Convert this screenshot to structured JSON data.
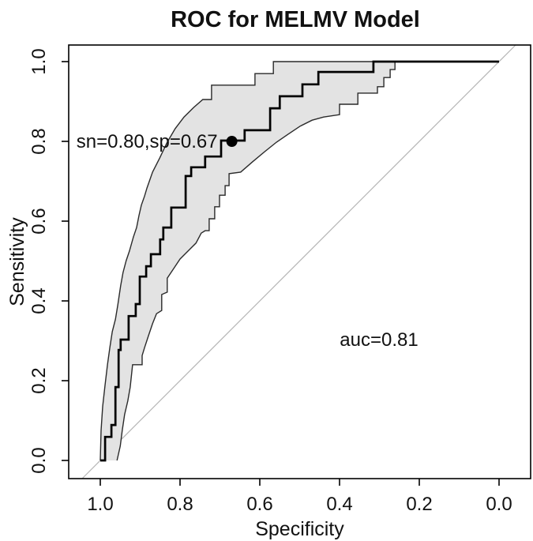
{
  "figure": {
    "title": "ROC for MELMV Model"
  },
  "chart_data": {
    "type": "line",
    "subtype": "roc-step-curve-with-confidence-band",
    "title": "ROC for MELMV Model",
    "xlabel": "Specificity",
    "ylabel": "Sensitivity",
    "grid": false,
    "legend": "none",
    "diagonal_reference_line": true,
    "x_axis": {
      "reversed": true,
      "tick_labels": [
        "1.0",
        "0.8",
        "0.6",
        "0.4",
        "0.2",
        "0.0"
      ],
      "tick_values": [
        1.0,
        0.8,
        0.6,
        0.4,
        0.2,
        0.0
      ],
      "range": [
        1.08,
        -0.08
      ]
    },
    "y_axis": {
      "tick_labels": [
        "0.0",
        "0.2",
        "0.4",
        "0.6",
        "0.8",
        "1.0"
      ],
      "tick_values": [
        0.0,
        0.2,
        0.4,
        0.6,
        0.8,
        1.0
      ],
      "range": [
        -0.05,
        1.04
      ]
    },
    "annotations": {
      "operating_point": {
        "label": "sn=0.80,sp=0.67",
        "sn": 0.8,
        "sp": 0.67
      },
      "auc": {
        "label": "auc=0.81",
        "value": 0.81,
        "at_specificity": 0.3,
        "at_sensitivity": 0.3
      }
    },
    "colors": {
      "band_fill": "#e3e3e3",
      "band_edge": "#2a2a2a",
      "curve": "#000000",
      "diagonal": "#b5b5b5",
      "box": "#000000",
      "text": "#111111",
      "marker": "#000000"
    },
    "series": [
      {
        "name": "roc_curve",
        "type": "step",
        "points": [
          [
            1.0,
            0.0
          ],
          [
            0.988,
            0.0
          ],
          [
            0.988,
            0.059
          ],
          [
            0.972,
            0.059
          ],
          [
            0.972,
            0.089
          ],
          [
            0.962,
            0.089
          ],
          [
            0.962,
            0.184
          ],
          [
            0.954,
            0.184
          ],
          [
            0.954,
            0.277
          ],
          [
            0.949,
            0.277
          ],
          [
            0.949,
            0.303
          ],
          [
            0.929,
            0.303
          ],
          [
            0.929,
            0.362
          ],
          [
            0.911,
            0.362
          ],
          [
            0.911,
            0.392
          ],
          [
            0.901,
            0.392
          ],
          [
            0.901,
            0.461
          ],
          [
            0.885,
            0.461
          ],
          [
            0.885,
            0.487
          ],
          [
            0.873,
            0.487
          ],
          [
            0.873,
            0.517
          ],
          [
            0.85,
            0.517
          ],
          [
            0.85,
            0.554
          ],
          [
            0.842,
            0.554
          ],
          [
            0.842,
            0.584
          ],
          [
            0.822,
            0.584
          ],
          [
            0.822,
            0.634
          ],
          [
            0.786,
            0.634
          ],
          [
            0.786,
            0.713
          ],
          [
            0.772,
            0.713
          ],
          [
            0.772,
            0.735
          ],
          [
            0.737,
            0.735
          ],
          [
            0.737,
            0.762
          ],
          [
            0.697,
            0.762
          ],
          [
            0.697,
            0.802
          ],
          [
            0.638,
            0.802
          ],
          [
            0.638,
            0.828
          ],
          [
            0.574,
            0.828
          ],
          [
            0.574,
            0.883
          ],
          [
            0.55,
            0.883
          ],
          [
            0.55,
            0.913
          ],
          [
            0.493,
            0.913
          ],
          [
            0.493,
            0.943
          ],
          [
            0.453,
            0.943
          ],
          [
            0.453,
            0.974
          ],
          [
            0.315,
            0.974
          ],
          [
            0.315,
            1.0
          ],
          [
            0.0,
            1.0
          ]
        ]
      },
      {
        "name": "ci_band_upper",
        "type": "step",
        "points": [
          [
            1.0,
            0.0
          ],
          [
            0.998,
            0.075
          ],
          [
            0.994,
            0.135
          ],
          [
            0.988,
            0.19
          ],
          [
            0.982,
            0.24
          ],
          [
            0.976,
            0.283
          ],
          [
            0.97,
            0.323
          ],
          [
            0.962,
            0.354
          ],
          [
            0.956,
            0.39
          ],
          [
            0.949,
            0.438
          ],
          [
            0.943,
            0.471
          ],
          [
            0.935,
            0.501
          ],
          [
            0.927,
            0.525
          ],
          [
            0.917,
            0.56
          ],
          [
            0.909,
            0.584
          ],
          [
            0.903,
            0.614
          ],
          [
            0.897,
            0.64
          ],
          [
            0.889,
            0.663
          ],
          [
            0.883,
            0.683
          ],
          [
            0.869,
            0.723
          ],
          [
            0.851,
            0.758
          ],
          [
            0.832,
            0.798
          ],
          [
            0.812,
            0.832
          ],
          [
            0.79,
            0.861
          ],
          [
            0.766,
            0.885
          ],
          [
            0.743,
            0.905
          ],
          [
            0.721,
            0.905
          ],
          [
            0.721,
            0.941
          ],
          [
            0.612,
            0.941
          ],
          [
            0.612,
            0.97
          ],
          [
            0.566,
            0.97
          ],
          [
            0.566,
            1.0
          ],
          [
            0.257,
            1.0
          ]
        ]
      },
      {
        "name": "ci_band_lower",
        "type": "step",
        "points": [
          [
            0.958,
            0.0
          ],
          [
            0.95,
            0.036
          ],
          [
            0.945,
            0.075
          ],
          [
            0.939,
            0.115
          ],
          [
            0.931,
            0.149
          ],
          [
            0.925,
            0.184
          ],
          [
            0.919,
            0.24
          ],
          [
            0.895,
            0.24
          ],
          [
            0.895,
            0.263
          ],
          [
            0.889,
            0.283
          ],
          [
            0.879,
            0.313
          ],
          [
            0.869,
            0.343
          ],
          [
            0.859,
            0.368
          ],
          [
            0.846,
            0.376
          ],
          [
            0.846,
            0.416
          ],
          [
            0.832,
            0.422
          ],
          [
            0.832,
            0.457
          ],
          [
            0.816,
            0.481
          ],
          [
            0.8,
            0.505
          ],
          [
            0.78,
            0.525
          ],
          [
            0.76,
            0.545
          ],
          [
            0.747,
            0.57
          ],
          [
            0.737,
            0.576
          ],
          [
            0.727,
            0.576
          ],
          [
            0.727,
            0.606
          ],
          [
            0.713,
            0.606
          ],
          [
            0.713,
            0.636
          ],
          [
            0.701,
            0.636
          ],
          [
            0.701,
            0.665
          ],
          [
            0.687,
            0.665
          ],
          [
            0.687,
            0.689
          ],
          [
            0.677,
            0.689
          ],
          [
            0.677,
            0.719
          ],
          [
            0.648,
            0.723
          ],
          [
            0.618,
            0.749
          ],
          [
            0.588,
            0.774
          ],
          [
            0.558,
            0.798
          ],
          [
            0.529,
            0.818
          ],
          [
            0.499,
            0.838
          ],
          [
            0.469,
            0.853
          ],
          [
            0.44,
            0.861
          ],
          [
            0.4,
            0.867
          ],
          [
            0.4,
            0.893
          ],
          [
            0.354,
            0.893
          ],
          [
            0.354,
            0.921
          ],
          [
            0.305,
            0.921
          ],
          [
            0.305,
            0.937
          ],
          [
            0.289,
            0.937
          ],
          [
            0.289,
            0.96
          ],
          [
            0.273,
            0.96
          ],
          [
            0.273,
            0.98
          ],
          [
            0.261,
            0.98
          ],
          [
            0.261,
            1.0
          ],
          [
            0.257,
            1.0
          ]
        ]
      }
    ]
  }
}
